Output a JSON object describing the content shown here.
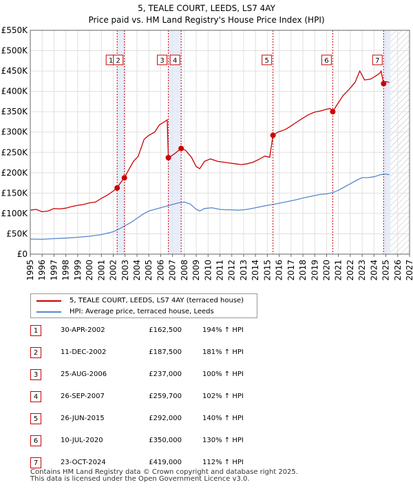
{
  "chart_data": {
    "type": "line",
    "title": "5, TEALE COURT, LEEDS, LS7 4AY",
    "subtitle": "Price paid vs. HM Land Registry's House Price Index (HPI)",
    "x_range": [
      1995,
      2027
    ],
    "ylim": [
      0,
      550000
    ],
    "x_ticks": [
      "1995",
      "1996",
      "1997",
      "1998",
      "1999",
      "2000",
      "2001",
      "2002",
      "2003",
      "2004",
      "2005",
      "2006",
      "2007",
      "2008",
      "2009",
      "2010",
      "2011",
      "2012",
      "2013",
      "2014",
      "2015",
      "2016",
      "2017",
      "2018",
      "2019",
      "2020",
      "2021",
      "2022",
      "2023",
      "2024",
      "2025",
      "2026",
      "2027"
    ],
    "y_ticks": [
      {
        "value": 0,
        "label": "£0"
      },
      {
        "value": 50000,
        "label": "£50K"
      },
      {
        "value": 100000,
        "label": "£100K"
      },
      {
        "value": 150000,
        "label": "£150K"
      },
      {
        "value": 200000,
        "label": "£200K"
      },
      {
        "value": 250000,
        "label": "£250K"
      },
      {
        "value": 300000,
        "label": "£300K"
      },
      {
        "value": 350000,
        "label": "£350K"
      },
      {
        "value": 400000,
        "label": "£400K"
      },
      {
        "value": 450000,
        "label": "£450K"
      },
      {
        "value": 500000,
        "label": "£500K"
      },
      {
        "value": 550000,
        "label": "£550K"
      }
    ],
    "future_hatch_from": 2025.4,
    "series": [
      {
        "name": "5, TEALE COURT, LEEDS, LS7 4AY (terraced house)",
        "color": "#cc0000",
        "points": [
          [
            1995.0,
            108000
          ],
          [
            1995.5,
            110000
          ],
          [
            1996.0,
            104000
          ],
          [
            1996.5,
            106000
          ],
          [
            1997.0,
            112000
          ],
          [
            1997.5,
            111000
          ],
          [
            1998.0,
            113000
          ],
          [
            1998.5,
            117000
          ],
          [
            1999.0,
            120000
          ],
          [
            1999.5,
            122000
          ],
          [
            2000.0,
            126000
          ],
          [
            2000.5,
            128000
          ],
          [
            2001.0,
            137000
          ],
          [
            2001.5,
            145000
          ],
          [
            2002.0,
            155000
          ],
          [
            2002.33,
            162500
          ],
          [
            2002.6,
            175000
          ],
          [
            2002.94,
            187500
          ],
          [
            2003.3,
            207000
          ],
          [
            2003.7,
            228000
          ],
          [
            2004.1,
            240000
          ],
          [
            2004.6,
            282000
          ],
          [
            2005.0,
            292000
          ],
          [
            2005.5,
            300000
          ],
          [
            2005.9,
            318000
          ],
          [
            2006.3,
            325000
          ],
          [
            2006.55,
            330000
          ],
          [
            2006.65,
            237000
          ],
          [
            2007.0,
            243000
          ],
          [
            2007.4,
            252000
          ],
          [
            2007.73,
            259700
          ],
          [
            2008.1,
            255000
          ],
          [
            2008.6,
            238000
          ],
          [
            2009.0,
            215000
          ],
          [
            2009.3,
            210000
          ],
          [
            2009.7,
            228000
          ],
          [
            2010.2,
            234000
          ],
          [
            2010.8,
            228000
          ],
          [
            2011.3,
            226000
          ],
          [
            2011.8,
            224000
          ],
          [
            2012.3,
            222000
          ],
          [
            2012.8,
            220000
          ],
          [
            2013.3,
            222000
          ],
          [
            2013.8,
            226000
          ],
          [
            2014.3,
            233000
          ],
          [
            2014.8,
            241000
          ],
          [
            2015.2,
            238000
          ],
          [
            2015.48,
            292000
          ],
          [
            2015.9,
            300000
          ],
          [
            2016.5,
            306000
          ],
          [
            2017.0,
            315000
          ],
          [
            2017.5,
            325000
          ],
          [
            2018.0,
            334000
          ],
          [
            2018.5,
            343000
          ],
          [
            2019.0,
            349000
          ],
          [
            2019.5,
            352000
          ],
          [
            2020.0,
            356000
          ],
          [
            2020.3,
            358000
          ],
          [
            2020.52,
            350000
          ],
          [
            2020.9,
            368000
          ],
          [
            2021.4,
            390000
          ],
          [
            2021.9,
            405000
          ],
          [
            2022.4,
            422000
          ],
          [
            2022.8,
            450000
          ],
          [
            2023.2,
            428000
          ],
          [
            2023.7,
            430000
          ],
          [
            2024.1,
            437000
          ],
          [
            2024.5,
            445000
          ],
          [
            2024.6,
            450000
          ],
          [
            2024.81,
            419000
          ],
          [
            2025.0,
            424000
          ],
          [
            2025.3,
            422000
          ]
        ]
      },
      {
        "name": "HPI: Average price, terraced house, Leeds",
        "color": "#5588cc",
        "points": [
          [
            1995.0,
            37000
          ],
          [
            1996.0,
            36500
          ],
          [
            1997.0,
            38000
          ],
          [
            1998.0,
            39500
          ],
          [
            1999.0,
            41500
          ],
          [
            2000.0,
            44000
          ],
          [
            2001.0,
            48000
          ],
          [
            2002.0,
            55000
          ],
          [
            2002.5,
            62000
          ],
          [
            2003.0,
            70000
          ],
          [
            2003.5,
            78000
          ],
          [
            2004.0,
            88000
          ],
          [
            2004.5,
            98000
          ],
          [
            2005.0,
            106000
          ],
          [
            2005.5,
            110000
          ],
          [
            2006.0,
            114000
          ],
          [
            2006.5,
            118000
          ],
          [
            2007.0,
            122000
          ],
          [
            2007.5,
            126000
          ],
          [
            2008.0,
            128000
          ],
          [
            2008.5,
            123000
          ],
          [
            2009.0,
            110000
          ],
          [
            2009.3,
            106000
          ],
          [
            2009.7,
            112000
          ],
          [
            2010.3,
            114000
          ],
          [
            2011.0,
            110000
          ],
          [
            2011.5,
            109000
          ],
          [
            2012.0,
            109000
          ],
          [
            2012.5,
            108000
          ],
          [
            2013.0,
            109000
          ],
          [
            2013.5,
            111000
          ],
          [
            2014.0,
            114000
          ],
          [
            2014.5,
            117000
          ],
          [
            2015.0,
            120000
          ],
          [
            2015.5,
            122000
          ],
          [
            2016.0,
            125000
          ],
          [
            2016.5,
            128000
          ],
          [
            2017.0,
            131000
          ],
          [
            2017.5,
            134000
          ],
          [
            2018.0,
            138000
          ],
          [
            2018.5,
            141000
          ],
          [
            2019.0,
            144000
          ],
          [
            2019.5,
            147000
          ],
          [
            2020.0,
            148000
          ],
          [
            2020.5,
            151000
          ],
          [
            2021.0,
            157000
          ],
          [
            2021.5,
            165000
          ],
          [
            2022.0,
            173000
          ],
          [
            2022.5,
            181000
          ],
          [
            2023.0,
            188000
          ],
          [
            2023.5,
            188000
          ],
          [
            2024.0,
            190000
          ],
          [
            2024.5,
            195000
          ],
          [
            2025.0,
            197000
          ],
          [
            2025.3,
            195000
          ]
        ]
      }
    ],
    "sales": [
      {
        "id": "1",
        "x": 2002.33,
        "value": 162500
      },
      {
        "id": "2",
        "x": 2002.94,
        "value": 187500
      },
      {
        "id": "3",
        "x": 2006.65,
        "value": 237000
      },
      {
        "id": "4",
        "x": 2007.73,
        "value": 259700
      },
      {
        "id": "5",
        "x": 2015.48,
        "value": 292000
      },
      {
        "id": "6",
        "x": 2020.52,
        "value": 350000
      },
      {
        "id": "7",
        "x": 2024.81,
        "value": 419000
      }
    ],
    "shaded_spans": [
      [
        2002.33,
        2002.94
      ],
      [
        2006.65,
        2007.73
      ]
    ]
  },
  "legend": {
    "items": [
      {
        "label": "5, TEALE COURT, LEEDS, LS7 4AY (terraced house)",
        "color": "#cc0000"
      },
      {
        "label": "HPI: Average price, terraced house, Leeds",
        "color": "#5588cc"
      }
    ]
  },
  "transactions": [
    {
      "num": "1",
      "date": "30-APR-2002",
      "price": "£162,500",
      "hpi": "194% ↑ HPI"
    },
    {
      "num": "2",
      "date": "11-DEC-2002",
      "price": "£187,500",
      "hpi": "181% ↑ HPI"
    },
    {
      "num": "3",
      "date": "25-AUG-2006",
      "price": "£237,000",
      "hpi": "100% ↑ HPI"
    },
    {
      "num": "4",
      "date": "26-SEP-2007",
      "price": "£259,700",
      "hpi": "102% ↑ HPI"
    },
    {
      "num": "5",
      "date": "26-JUN-2015",
      "price": "£292,000",
      "hpi": "140% ↑ HPI"
    },
    {
      "num": "6",
      "date": "10-JUL-2020",
      "price": "£350,000",
      "hpi": "130% ↑ HPI"
    },
    {
      "num": "7",
      "date": "23-OCT-2024",
      "price": "£419,000",
      "hpi": "112% ↑ HPI"
    }
  ],
  "footer": {
    "line1": "Contains HM Land Registry data © Crown copyright and database right 2025.",
    "line2": "This data is licensed under the Open Government Licence v3.0."
  }
}
